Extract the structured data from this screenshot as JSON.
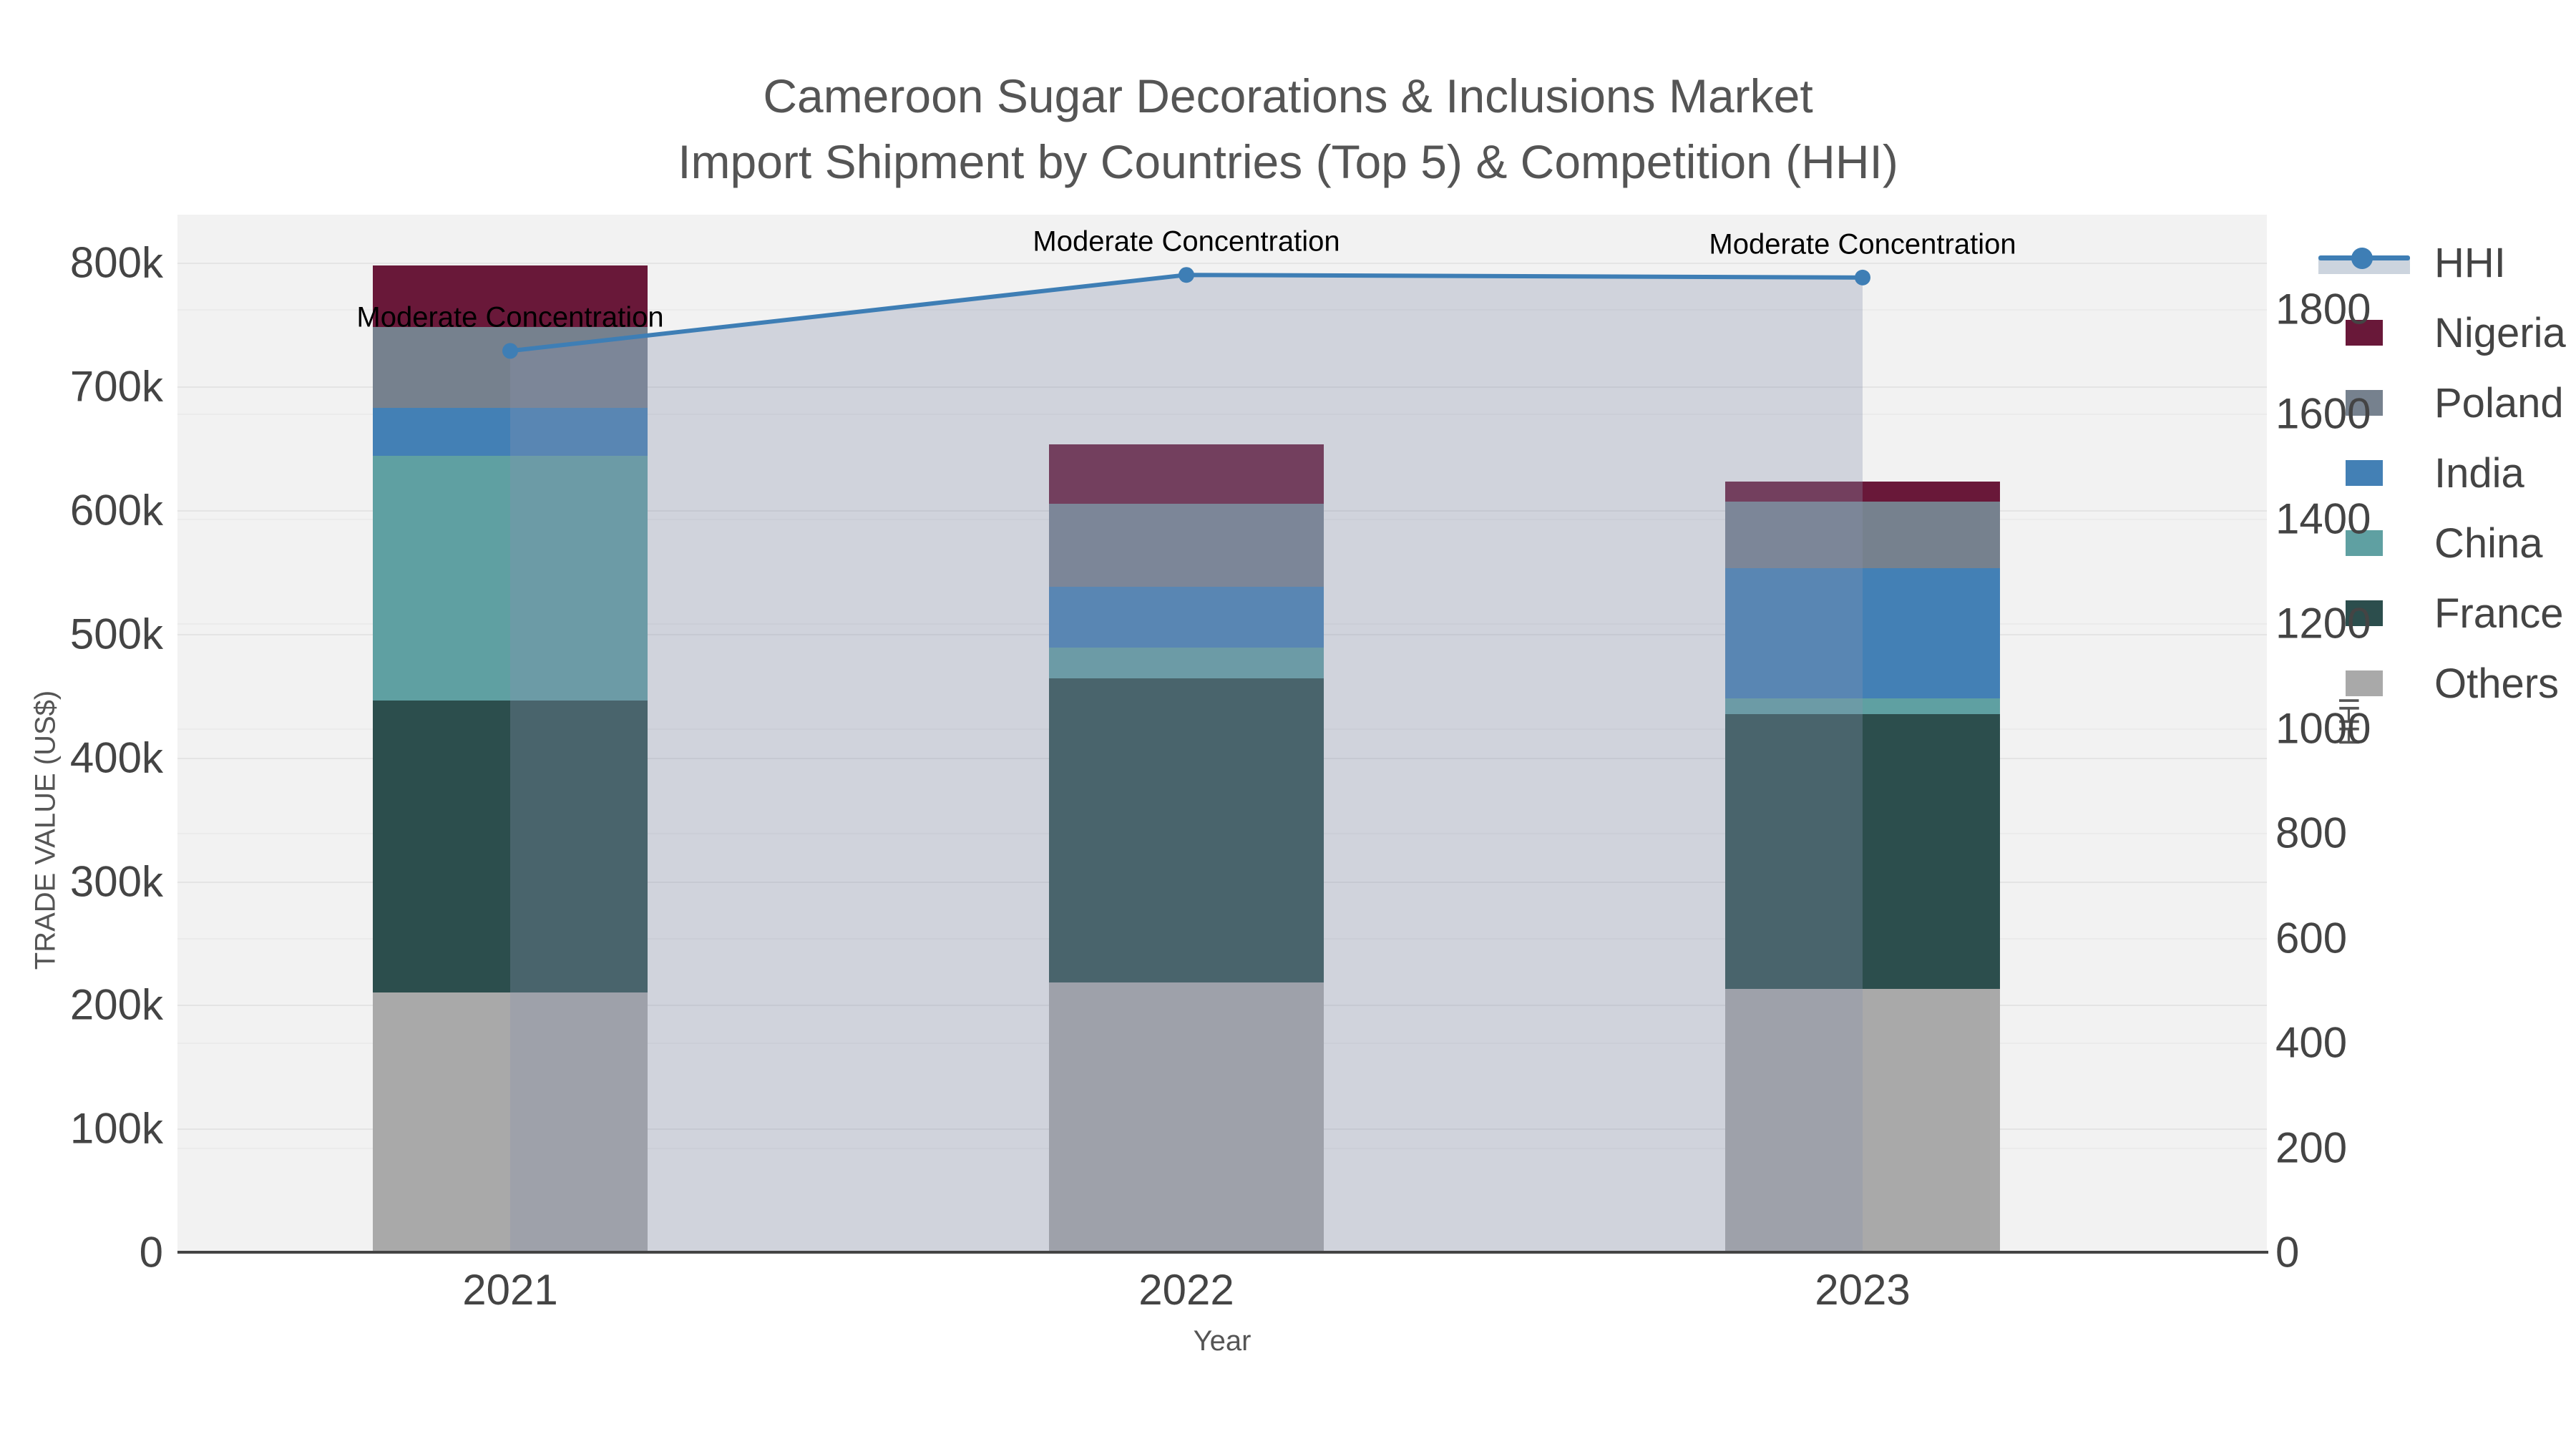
{
  "title": {
    "line1": "Cameroon Sugar Decorations & Inclusions Market",
    "line2": "Import Shipment by Countries (Top 5) & Competition (HHI)"
  },
  "axes": {
    "x_title": "Year",
    "y_left_title": "TRADE VALUE (US$)",
    "y_right_title": "HHI"
  },
  "colors": {
    "plot_background": "#f2f2f2",
    "gridline_major": "#e4e4e4",
    "gridline_minor": "#ebebeb",
    "axis_line": "#444444",
    "hhi_line": "#3e7eb5",
    "hhi_area_fill": "rgba(137,146,174,0.32)",
    "text": "#555555"
  },
  "legend": {
    "items": [
      {
        "label": "HHI",
        "type": "line",
        "color": "#3e7eb5"
      },
      {
        "label": "Nigeria",
        "type": "swatch",
        "color": "#691839"
      },
      {
        "label": "Poland",
        "type": "swatch",
        "color": "#76818e"
      },
      {
        "label": "India",
        "type": "swatch",
        "color": "#4380b5"
      },
      {
        "label": "China",
        "type": "swatch",
        "color": "#5fa0a2"
      },
      {
        "label": "France",
        "type": "swatch",
        "color": "#2c4e4d"
      },
      {
        "label": "Others",
        "type": "swatch",
        "color": "#a9a9a9"
      }
    ]
  },
  "chart_data": {
    "type": "combo-stacked-bar-line",
    "categories": [
      "2021",
      "2022",
      "2023"
    ],
    "bar_unit": "US$ thousands",
    "series": [
      {
        "name": "Others",
        "color": "#a9a9a9",
        "values_k": [
          210,
          218,
          213
        ]
      },
      {
        "name": "France",
        "color": "#2c4e4d",
        "values_k": [
          236,
          246,
          222
        ]
      },
      {
        "name": "China",
        "color": "#5fa0a2",
        "values_k": [
          198,
          25,
          13
        ]
      },
      {
        "name": "India",
        "color": "#4380b5",
        "values_k": [
          39,
          49,
          105
        ]
      },
      {
        "name": "Poland",
        "color": "#76818e",
        "values_k": [
          65,
          67,
          54
        ]
      },
      {
        "name": "Nigeria",
        "color": "#691839",
        "values_k": [
          50,
          48,
          16
        ]
      }
    ],
    "bar_totals_k": [
      798,
      653,
      623
    ],
    "line_series": {
      "name": "HHI",
      "color": "#3e7eb5",
      "fill": "rgba(137,146,174,0.32)",
      "values": [
        1720,
        1865,
        1860
      ]
    },
    "annotations": [
      "Moderate Concentration",
      "Moderate Concentration",
      "Moderate Concentration"
    ],
    "y_left": {
      "label": "TRADE VALUE (US$)",
      "tick_labels": [
        "0",
        "100k",
        "200k",
        "300k",
        "400k",
        "500k",
        "600k",
        "700k",
        "800k"
      ],
      "tick_values_k": [
        0,
        100,
        200,
        300,
        400,
        500,
        600,
        700,
        800
      ],
      "max_k": 839
    },
    "y_right": {
      "label": "HHI",
      "tick_labels": [
        "0",
        "200",
        "400",
        "600",
        "800",
        "1000",
        "1200",
        "1400",
        "1600",
        "1800"
      ],
      "tick_values": [
        0,
        200,
        400,
        600,
        800,
        1000,
        1200,
        1400,
        1600,
        1800
      ],
      "max": 1980
    },
    "x": {
      "label": "Year"
    },
    "grid": true,
    "legend_position": "right"
  }
}
